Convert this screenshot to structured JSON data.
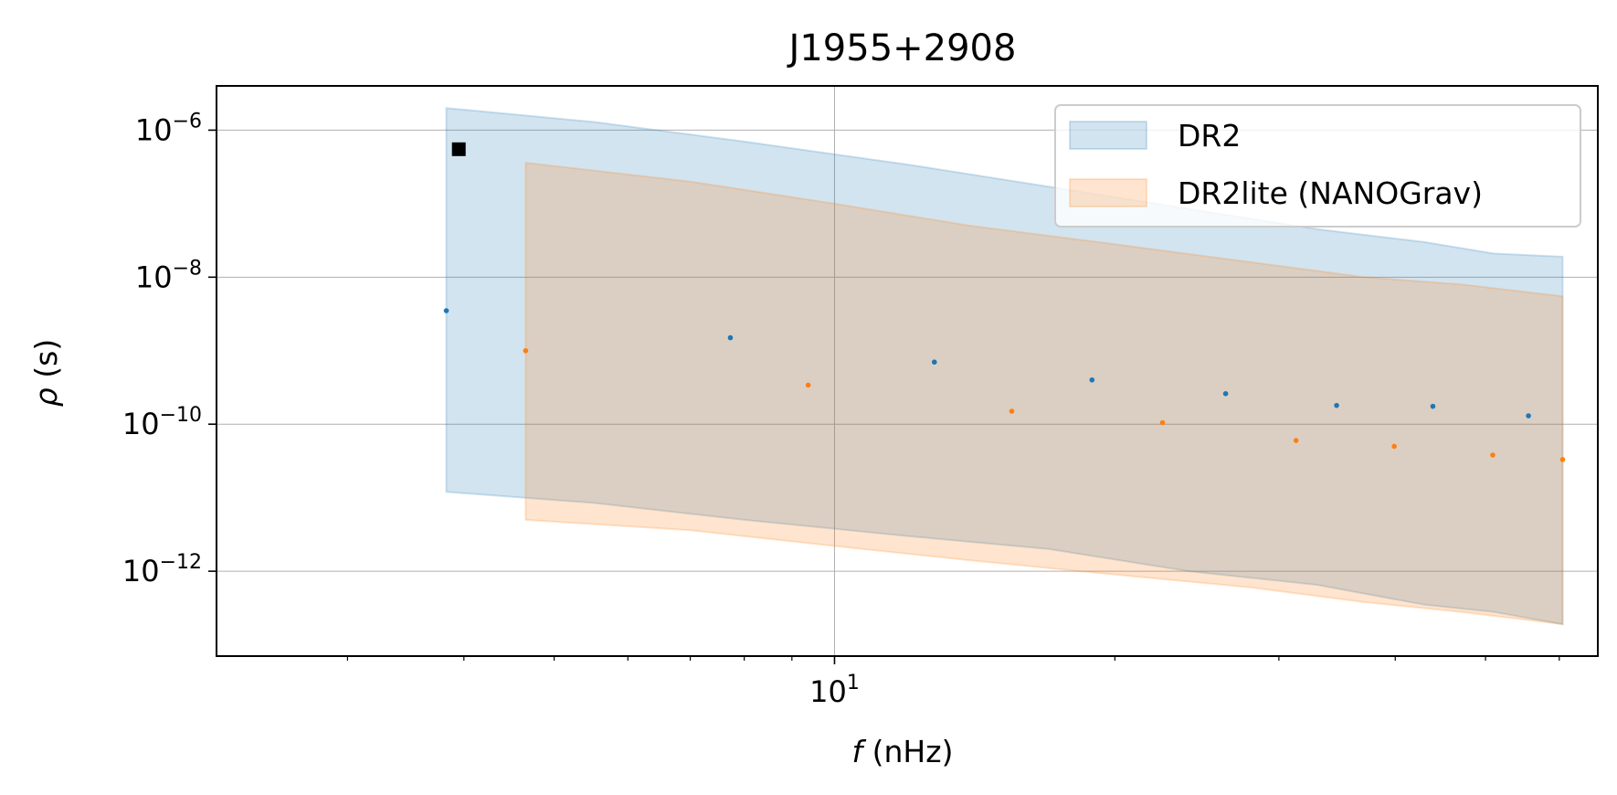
{
  "chart_data": {
    "type": "area",
    "title": "J1955+2908",
    "xlabel_var": "f",
    "xlabel_unit": " (nHz)",
    "ylabel_var": "ρ",
    "ylabel_unit": " (s)",
    "xscale": "log",
    "yscale": "log",
    "xlim": [
      2.17,
      66.0
    ],
    "ylim": [
      7e-14,
      4e-06
    ],
    "grid": true,
    "legend_position": "top-right",
    "x_ticks": [
      {
        "value": 10,
        "base": "10",
        "exp": "1"
      }
    ],
    "y_ticks": [
      {
        "value": 1e-06,
        "base": "10",
        "exp": "−6"
      },
      {
        "value": 1e-08,
        "base": "10",
        "exp": "−8"
      },
      {
        "value": 1e-10,
        "base": "10",
        "exp": "−10"
      },
      {
        "value": 1e-12,
        "base": "10",
        "exp": "−12"
      }
    ],
    "series": [
      {
        "name": "DR2",
        "color": "#1f77b4",
        "points_x": [
          3.83,
          7.73,
          12.8,
          18.9,
          26.3,
          34.6,
          43.9,
          55.6
        ],
        "points_y": [
          3.5e-09,
          1.5e-09,
          7e-10,
          4e-10,
          2.6e-10,
          1.8e-10,
          1.75e-10,
          1.3e-10
        ],
        "band_x": [
          3.83,
          5.5,
          8.0,
          12.0,
          17.0,
          24.0,
          33.0,
          43.0,
          51.0,
          60.5
        ],
        "band_upper": [
          2e-06,
          1.3e-06,
          7e-07,
          3.4e-07,
          1.7e-07,
          8.5e-08,
          4.5e-08,
          3e-08,
          2.1e-08,
          1.9e-08
        ],
        "band_lower": [
          1.2e-11,
          8.5e-12,
          5e-12,
          3e-12,
          2e-12,
          1e-12,
          6.5e-13,
          3.5e-13,
          2.8e-13,
          1.9e-13
        ]
      },
      {
        "name": "DR2lite (NANOGrav)",
        "color": "#ff7f0e",
        "points_x": [
          4.66,
          9.37,
          15.5,
          22.5,
          31.3,
          39.9,
          50.9,
          60.5
        ],
        "points_y": [
          1e-09,
          3.4e-10,
          1.5e-10,
          1.05e-10,
          6e-11,
          5e-11,
          3.8e-11,
          3.3e-11
        ],
        "band_x": [
          4.66,
          7.0,
          10.0,
          14.0,
          20.0,
          28.0,
          37.0,
          47.0,
          60.5
        ],
        "band_upper": [
          3.6e-07,
          2e-07,
          1e-07,
          5e-08,
          2.8e-08,
          1.6e-08,
          1e-08,
          8e-09,
          5.5e-09
        ],
        "band_lower": [
          5e-12,
          3.6e-12,
          2.2e-12,
          1.4e-12,
          9e-13,
          6e-13,
          3.8e-13,
          2.8e-13,
          1.9e-13
        ]
      }
    ],
    "marker_point": {
      "x": 3.95,
      "y": 5.5e-07,
      "color": "#000000"
    }
  }
}
